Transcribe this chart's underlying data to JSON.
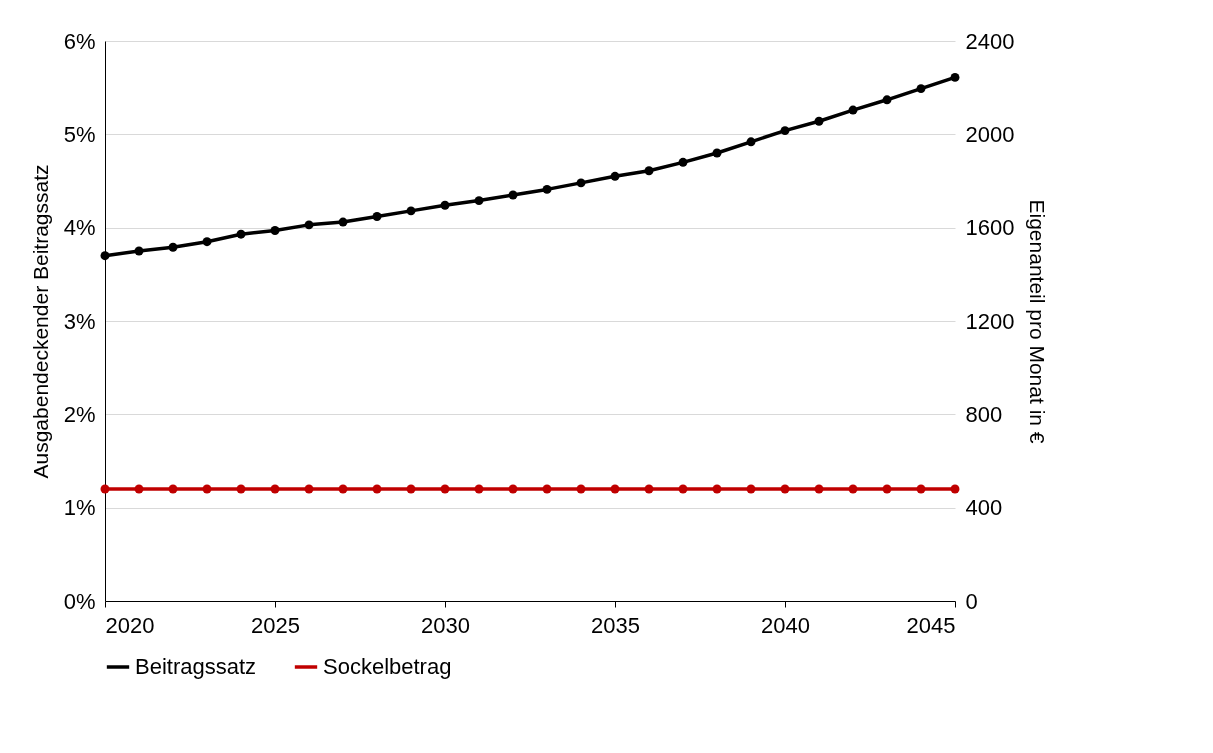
{
  "chart_data": {
    "type": "line",
    "ylabel": "Ausgabendeckender Beitragssatz",
    "y2label": "Eigenanteil pro Monat in €",
    "x": [
      2020,
      2021,
      2022,
      2023,
      2024,
      2025,
      2026,
      2027,
      2028,
      2029,
      2030,
      2031,
      2032,
      2033,
      2034,
      2035,
      2036,
      2037,
      2038,
      2039,
      2040,
      2041,
      2042,
      2043,
      2044,
      2045
    ],
    "series": [
      {
        "name": "Beitragssatz",
        "color": "#000000",
        "values": [
          3.7,
          3.75,
          3.79,
          3.85,
          3.93,
          3.97,
          4.03,
          4.06,
          4.12,
          4.18,
          4.24,
          4.29,
          4.35,
          4.41,
          4.48,
          4.55,
          4.61,
          4.7,
          4.8,
          4.92,
          5.04,
          5.14,
          5.26,
          5.37,
          5.49,
          5.61
        ]
      },
      {
        "name": "Sockelbetrag",
        "color": "#c00000",
        "axis": "y2",
        "values": [
          480,
          480,
          480,
          480,
          480,
          480,
          480,
          480,
          480,
          480,
          480,
          480,
          480,
          480,
          480,
          480,
          480,
          480,
          480,
          480,
          480,
          480,
          480,
          480,
          480,
          480
        ]
      }
    ],
    "xlim": [
      2020,
      2045
    ],
    "xticks": [
      2020,
      2025,
      2030,
      2035,
      2040,
      2045
    ],
    "ylim": [
      0,
      6
    ],
    "yticks": [
      {
        "value": 0,
        "label": "0%"
      },
      {
        "value": 1,
        "label": "1%"
      },
      {
        "value": 2,
        "label": "2%"
      },
      {
        "value": 3,
        "label": "3%"
      },
      {
        "value": 4,
        "label": "4%"
      },
      {
        "value": 5,
        "label": "5%"
      },
      {
        "value": 6,
        "label": "6%"
      }
    ],
    "y2lim": [
      0,
      2400
    ],
    "y2ticks": [
      0,
      400,
      800,
      1200,
      1600,
      2000,
      2400
    ],
    "grid": "y",
    "legend": "bottom",
    "marker": "circle",
    "line_style": "solid"
  }
}
